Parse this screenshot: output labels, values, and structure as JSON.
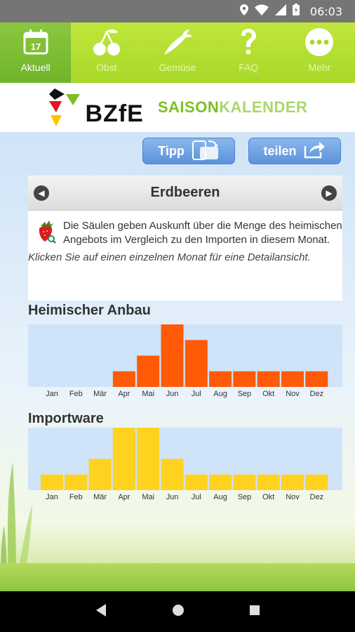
{
  "status_bar": {
    "time": "06:03"
  },
  "tabs": [
    {
      "label": "Aktuell",
      "icon": "calendar-icon",
      "day": "17"
    },
    {
      "label": "Obst",
      "icon": "cherry-icon"
    },
    {
      "label": "Gemüse",
      "icon": "vegetable-icon"
    },
    {
      "label": "FAQ",
      "icon": "question-icon"
    },
    {
      "label": "Mehr",
      "icon": "more-icon"
    }
  ],
  "logo": {
    "bzfe": "BZfE",
    "saison_part1": "SAISON",
    "saison_part2": "KALENDER"
  },
  "buttons": {
    "tipp": "Tipp",
    "share": "teilen"
  },
  "product": {
    "title": "Erdbeeren",
    "info": "Die Säulen geben Auskunft über die Menge des heimischen Angebots im Vergleich zu den Importen in diesem Monat.",
    "hint": "Klicken Sie auf einen einzelnen Monat für eine Detailansicht."
  },
  "colors": {
    "domestic": "#ff5a05",
    "import": "#ffd21f",
    "chart_bg": "#cfe3f9",
    "accent": "#a9d82a"
  },
  "chart_data": [
    {
      "type": "bar",
      "title": "Heimischer Anbau",
      "categories": [
        "Jan",
        "Feb",
        "Mär",
        "Apr",
        "Mai",
        "Jun",
        "Jul",
        "Aug",
        "Sep",
        "Okt",
        "Nov",
        "Dez"
      ],
      "values": [
        0,
        0,
        0,
        1,
        2,
        4,
        3,
        1,
        1,
        1,
        1,
        1
      ],
      "ylim": [
        0,
        4
      ]
    },
    {
      "type": "bar",
      "title": "Importware",
      "categories": [
        "Jan",
        "Feb",
        "Mär",
        "Apr",
        "Mai",
        "Jun",
        "Jul",
        "Aug",
        "Sep",
        "Okt",
        "Nov",
        "Dez"
      ],
      "values": [
        1,
        1,
        2,
        4,
        4,
        2,
        1,
        1,
        1,
        1,
        1,
        1
      ],
      "ylim": [
        0,
        4
      ]
    }
  ]
}
